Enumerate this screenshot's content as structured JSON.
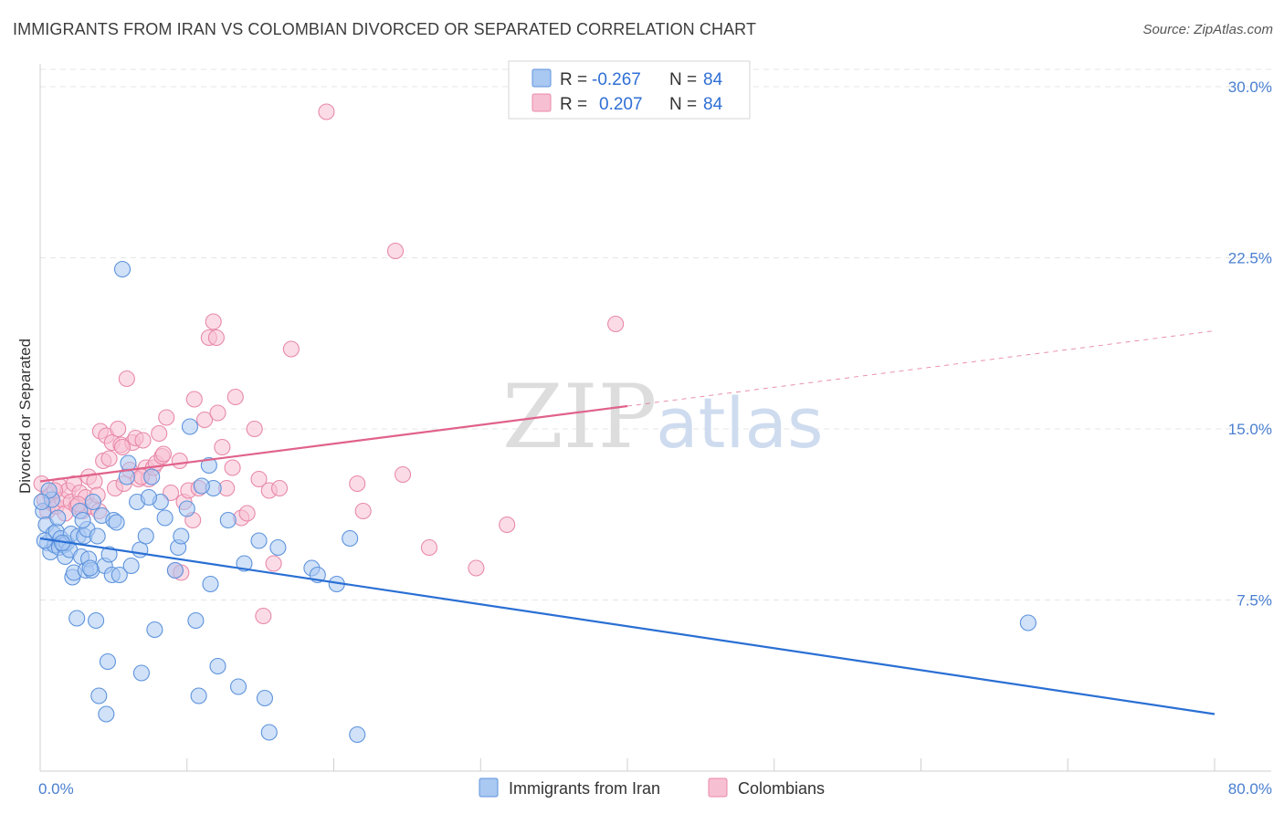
{
  "title": "IMMIGRANTS FROM IRAN VS COLOMBIAN DIVORCED OR SEPARATED CORRELATION CHART",
  "source": "Source: ZipAtlas.com",
  "watermark": {
    "zip": "ZIP",
    "atlas": "atlas"
  },
  "colors": {
    "iran_fill": "#a9c8f2",
    "iran_stroke": "#5d93dc",
    "iran_line": "#2a6fd4",
    "colombian_fill": "#f7bfd2",
    "colombian_stroke": "#e889a9",
    "colombian_line": "#e0628a",
    "grid": "#e6e6e6",
    "tick_label": "#4a7fd0"
  },
  "legend": {
    "rows": [
      {
        "r_label": "R =",
        "r_value": "-0.267",
        "n_label": "N =",
        "n_value": "84"
      },
      {
        "r_label": "R =",
        "r_value": "0.207",
        "n_label": "N =",
        "n_value": "84"
      }
    ]
  },
  "bottom_legend": [
    "Immigrants from Iran",
    "Colombians"
  ],
  "chart_data": {
    "type": "scatter",
    "title": "IMMIGRANTS FROM IRAN VS COLOMBIAN DIVORCED OR SEPARATED CORRELATION CHART",
    "xlabel": "",
    "ylabel": "Divorced or Separated",
    "xlim": [
      0,
      80
    ],
    "ylim": [
      0,
      31.5
    ],
    "x_tick_labels": [
      {
        "value": 0,
        "label": "0.0%"
      },
      {
        "value": 80,
        "label": "80.0%"
      }
    ],
    "y_ticks": [
      {
        "value": 7.5,
        "label": "7.5%"
      },
      {
        "value": 15.0,
        "label": "15.0%"
      },
      {
        "value": 22.5,
        "label": "22.5%"
      },
      {
        "value": 30.0,
        "label": "30.0%"
      }
    ],
    "legend_placement": "top-center",
    "grid": "horizontal-dashed",
    "series": [
      {
        "name": "Immigrants from Iran",
        "r": -0.267,
        "n": 84,
        "trend": {
          "x": [
            0,
            80
          ],
          "y": [
            10.2,
            2.5
          ],
          "dashed_from_x": null
        },
        "points": [
          [
            0.2,
            11.4
          ],
          [
            0.4,
            10.8
          ],
          [
            0.5,
            10.0
          ],
          [
            0.7,
            9.6
          ],
          [
            0.8,
            11.9
          ],
          [
            0.9,
            10.4
          ],
          [
            1.0,
            9.9
          ],
          [
            1.1,
            10.5
          ],
          [
            1.2,
            11.1
          ],
          [
            1.3,
            9.8
          ],
          [
            1.4,
            10.2
          ],
          [
            1.6,
            9.9
          ],
          [
            1.7,
            9.4
          ],
          [
            1.8,
            10.0
          ],
          [
            2.0,
            9.7
          ],
          [
            2.1,
            10.4
          ],
          [
            2.2,
            8.5
          ],
          [
            2.3,
            8.7
          ],
          [
            2.5,
            6.7
          ],
          [
            2.6,
            10.3
          ],
          [
            2.7,
            11.4
          ],
          [
            2.8,
            9.4
          ],
          [
            3.0,
            10.3
          ],
          [
            3.1,
            8.8
          ],
          [
            3.2,
            10.6
          ],
          [
            3.3,
            9.3
          ],
          [
            3.5,
            8.8
          ],
          [
            3.6,
            11.8
          ],
          [
            3.8,
            6.6
          ],
          [
            3.9,
            10.3
          ],
          [
            4.0,
            3.3
          ],
          [
            4.2,
            11.2
          ],
          [
            4.4,
            9.0
          ],
          [
            4.5,
            2.5
          ],
          [
            4.6,
            4.8
          ],
          [
            4.7,
            9.5
          ],
          [
            4.9,
            8.6
          ],
          [
            5.0,
            11.0
          ],
          [
            5.2,
            10.9
          ],
          [
            5.6,
            22.0
          ],
          [
            5.9,
            12.9
          ],
          [
            6.0,
            13.5
          ],
          [
            6.6,
            11.8
          ],
          [
            6.8,
            9.7
          ],
          [
            6.9,
            4.3
          ],
          [
            7.2,
            10.3
          ],
          [
            7.6,
            12.9
          ],
          [
            7.8,
            6.2
          ],
          [
            8.2,
            11.8
          ],
          [
            8.5,
            11.1
          ],
          [
            9.4,
            9.8
          ],
          [
            9.6,
            10.3
          ],
          [
            10.0,
            11.5
          ],
          [
            10.2,
            15.1
          ],
          [
            10.6,
            6.6
          ],
          [
            10.8,
            3.3
          ],
          [
            11.5,
            13.4
          ],
          [
            11.6,
            8.2
          ],
          [
            11.8,
            12.4
          ],
          [
            12.1,
            4.6
          ],
          [
            12.8,
            11.0
          ],
          [
            13.5,
            3.7
          ],
          [
            13.9,
            9.1
          ],
          [
            14.9,
            10.1
          ],
          [
            15.3,
            3.2
          ],
          [
            15.6,
            1.7
          ],
          [
            16.2,
            9.8
          ],
          [
            18.5,
            8.9
          ],
          [
            18.9,
            8.6
          ],
          [
            20.2,
            8.2
          ],
          [
            21.1,
            10.2
          ],
          [
            21.6,
            1.6
          ],
          [
            67.3,
            6.5
          ],
          [
            0.3,
            10.1
          ],
          [
            0.6,
            12.3
          ],
          [
            1.5,
            10.0
          ],
          [
            3.4,
            8.9
          ],
          [
            5.4,
            8.6
          ],
          [
            7.4,
            12.0
          ],
          [
            9.2,
            8.8
          ],
          [
            11.0,
            12.5
          ],
          [
            0.1,
            11.8
          ],
          [
            2.9,
            11.0
          ],
          [
            6.2,
            9.0
          ]
        ]
      },
      {
        "name": "Colombians",
        "r": 0.207,
        "n": 84,
        "trend": {
          "x": [
            0,
            80
          ],
          "y": [
            12.7,
            19.3
          ],
          "dashed_from_x": 40
        },
        "points": [
          [
            0.1,
            12.6
          ],
          [
            0.3,
            11.9
          ],
          [
            0.5,
            11.4
          ],
          [
            0.7,
            12.1
          ],
          [
            0.9,
            11.7
          ],
          [
            1.1,
            11.6
          ],
          [
            1.3,
            12.5
          ],
          [
            1.5,
            11.9
          ],
          [
            1.7,
            11.3
          ],
          [
            1.9,
            12.3
          ],
          [
            2.1,
            11.8
          ],
          [
            2.3,
            12.6
          ],
          [
            2.5,
            11.6
          ],
          [
            2.7,
            12.2
          ],
          [
            2.9,
            11.4
          ],
          [
            3.1,
            12.0
          ],
          [
            3.3,
            12.9
          ],
          [
            3.5,
            11.6
          ],
          [
            3.7,
            12.7
          ],
          [
            3.9,
            12.1
          ],
          [
            4.1,
            14.9
          ],
          [
            4.3,
            13.6
          ],
          [
            4.5,
            14.7
          ],
          [
            4.7,
            13.7
          ],
          [
            4.9,
            14.4
          ],
          [
            5.1,
            12.4
          ],
          [
            5.3,
            15.0
          ],
          [
            5.5,
            14.3
          ],
          [
            5.7,
            12.6
          ],
          [
            5.9,
            17.2
          ],
          [
            6.1,
            13.2
          ],
          [
            6.3,
            14.4
          ],
          [
            6.5,
            14.6
          ],
          [
            6.7,
            12.8
          ],
          [
            7.0,
            14.5
          ],
          [
            7.2,
            13.3
          ],
          [
            7.4,
            12.8
          ],
          [
            7.7,
            13.3
          ],
          [
            7.9,
            13.5
          ],
          [
            8.1,
            14.8
          ],
          [
            8.3,
            13.8
          ],
          [
            8.6,
            15.5
          ],
          [
            8.9,
            12.2
          ],
          [
            9.2,
            8.8
          ],
          [
            9.5,
            13.6
          ],
          [
            9.8,
            11.8
          ],
          [
            10.1,
            12.3
          ],
          [
            10.5,
            16.3
          ],
          [
            10.8,
            12.4
          ],
          [
            11.2,
            15.4
          ],
          [
            11.5,
            19.0
          ],
          [
            11.8,
            19.7
          ],
          [
            12.1,
            15.7
          ],
          [
            12.4,
            14.2
          ],
          [
            12.7,
            12.4
          ],
          [
            13.1,
            13.3
          ],
          [
            13.3,
            16.4
          ],
          [
            13.7,
            11.1
          ],
          [
            14.1,
            11.3
          ],
          [
            14.9,
            12.8
          ],
          [
            15.2,
            6.8
          ],
          [
            15.6,
            12.3
          ],
          [
            15.9,
            9.1
          ],
          [
            16.3,
            12.4
          ],
          [
            17.1,
            18.5
          ],
          [
            19.5,
            28.9
          ],
          [
            21.6,
            12.6
          ],
          [
            22.0,
            11.4
          ],
          [
            24.2,
            22.8
          ],
          [
            24.7,
            13.0
          ],
          [
            26.5,
            9.8
          ],
          [
            29.7,
            8.9
          ],
          [
            31.8,
            10.8
          ],
          [
            39.2,
            19.6
          ],
          [
            14.6,
            15.0
          ],
          [
            12.0,
            19.0
          ],
          [
            10.4,
            11.0
          ],
          [
            9.6,
            8.7
          ],
          [
            8.4,
            13.9
          ],
          [
            6.9,
            12.9
          ],
          [
            5.6,
            14.2
          ],
          [
            4.0,
            11.4
          ],
          [
            2.6,
            11.7
          ],
          [
            1.0,
            12.3
          ]
        ]
      }
    ]
  }
}
